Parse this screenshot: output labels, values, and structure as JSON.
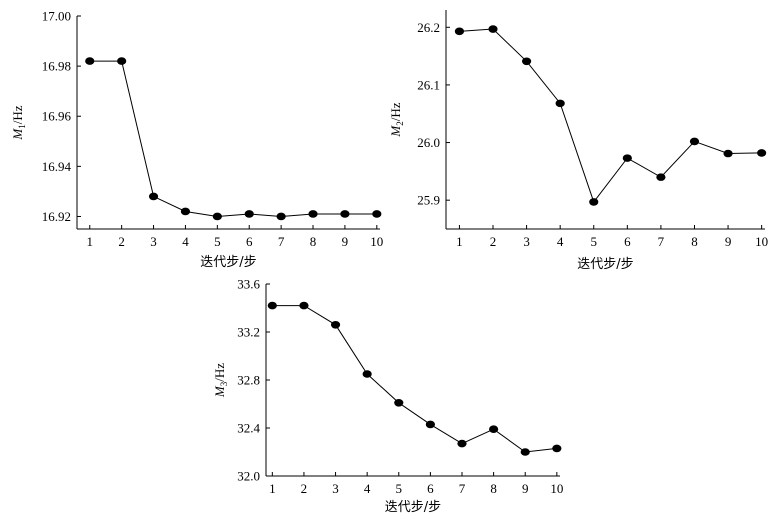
{
  "chart_data": [
    {
      "type": "line",
      "x": [
        1,
        2,
        3,
        4,
        5,
        6,
        7,
        8,
        9,
        10
      ],
      "y": [
        16.982,
        16.982,
        16.928,
        16.922,
        16.92,
        16.921,
        16.92,
        16.921,
        16.921,
        16.921
      ],
      "xlabel": "迭代步/步",
      "ylabel": {
        "sym": "M",
        "sub": "1",
        "unit": "/Hz"
      },
      "xlim": [
        0.6,
        10.1
      ],
      "ylim": [
        16.915,
        17.0
      ],
      "xticks": [
        1,
        2,
        3,
        4,
        5,
        6,
        7,
        8,
        9,
        10
      ],
      "yticks": [
        "16.92",
        "16.94",
        "16.96",
        "16.98",
        "17.00"
      ]
    },
    {
      "type": "line",
      "x": [
        1,
        2,
        3,
        4,
        5,
        6,
        7,
        8,
        9,
        10
      ],
      "y": [
        26.193,
        26.197,
        26.141,
        26.068,
        25.897,
        25.973,
        25.94,
        26.002,
        25.981,
        25.982
      ],
      "xlabel": "迭代步/步",
      "ylabel": {
        "sym": "M",
        "sub": "2",
        "unit": "/Hz"
      },
      "xlim": [
        0.6,
        10.1
      ],
      "ylim": [
        25.85,
        26.23
      ],
      "xticks": [
        1,
        2,
        3,
        4,
        5,
        6,
        7,
        8,
        9,
        10
      ],
      "yticks": [
        "25.9",
        "26.0",
        "26.1",
        "26.2"
      ]
    },
    {
      "type": "line",
      "x": [
        1,
        2,
        3,
        4,
        5,
        6,
        7,
        8,
        9,
        10
      ],
      "y": [
        33.42,
        33.42,
        33.26,
        32.85,
        32.61,
        32.43,
        32.27,
        32.39,
        32.2,
        32.23
      ],
      "xlabel": "迭代步/步",
      "ylabel": {
        "sym": "M",
        "sub": "3",
        "unit": "/Hz"
      },
      "xlim": [
        0.8,
        10.1
      ],
      "ylim": [
        32.0,
        33.6
      ],
      "xticks": [
        1,
        2,
        3,
        4,
        5,
        6,
        7,
        8,
        9,
        10
      ],
      "yticks": [
        "32.0",
        "32.4",
        "32.8",
        "33.2",
        "33.6"
      ]
    }
  ]
}
